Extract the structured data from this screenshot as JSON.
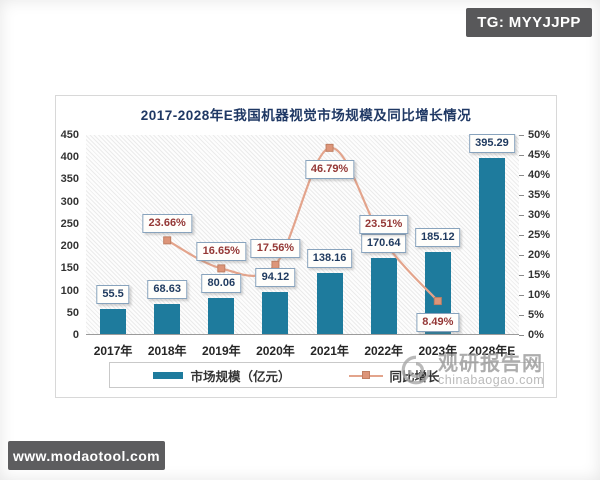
{
  "badges": {
    "tg": "TG: MYYJJPP",
    "site": "www.modaotool.com"
  },
  "watermark": {
    "name": "观研报告网",
    "url": "chinabaogao.com"
  },
  "chart_data": {
    "type": "bar",
    "title": "2017-2028年E我国机器视觉市场规模及同比增长情况",
    "categories": [
      "2017年",
      "2018年",
      "2019年",
      "2020年",
      "2021年",
      "2022年",
      "2023年",
      "2028年E"
    ],
    "series": [
      {
        "name": "市场规模（亿元）",
        "type": "bar",
        "axis": "left",
        "color": "#1e7b9d",
        "values": [
          55.5,
          68.63,
          80.06,
          94.12,
          138.16,
          170.64,
          185.12,
          395.29
        ],
        "labels": [
          "55.5",
          "68.63",
          "80.06",
          "94.12",
          "138.16",
          "170.64",
          "185.12",
          "395.29"
        ]
      },
      {
        "name": "同比增长",
        "type": "line",
        "axis": "right",
        "color": "#e3a48c",
        "marker_color": "#dd9579",
        "points": [
          {
            "category_index": 1,
            "value": 23.66,
            "label": "23.66%",
            "label_position": "above"
          },
          {
            "category_index": 2,
            "value": 16.65,
            "label": "16.65%",
            "label_position": "above"
          },
          {
            "category_index": 3,
            "value": 17.56,
            "label": "17.56%",
            "label_position": "above"
          },
          {
            "category_index": 4,
            "value": 46.79,
            "label": "46.79%",
            "label_position": "below"
          },
          {
            "category_index": 5,
            "value": 23.51,
            "label": "23.51%",
            "label_position": "above"
          },
          {
            "category_index": 6,
            "value": 8.49,
            "label": "8.49%",
            "label_position": "below"
          }
        ]
      }
    ],
    "left_axis": {
      "min": 0,
      "max": 450,
      "ticks": [
        "450",
        "400",
        "350",
        "300",
        "250",
        "200",
        "150",
        "100",
        "50",
        "0"
      ]
    },
    "right_axis": {
      "min": 0,
      "max": 50,
      "ticks": [
        "50%",
        "45%",
        "40%",
        "35%",
        "30%",
        "25%",
        "20%",
        "15%",
        "10%",
        "5%",
        "0%"
      ]
    },
    "legend": {
      "position": "bottom",
      "items": [
        "市场规模（亿元）",
        "同比增长"
      ]
    },
    "grid": false
  }
}
